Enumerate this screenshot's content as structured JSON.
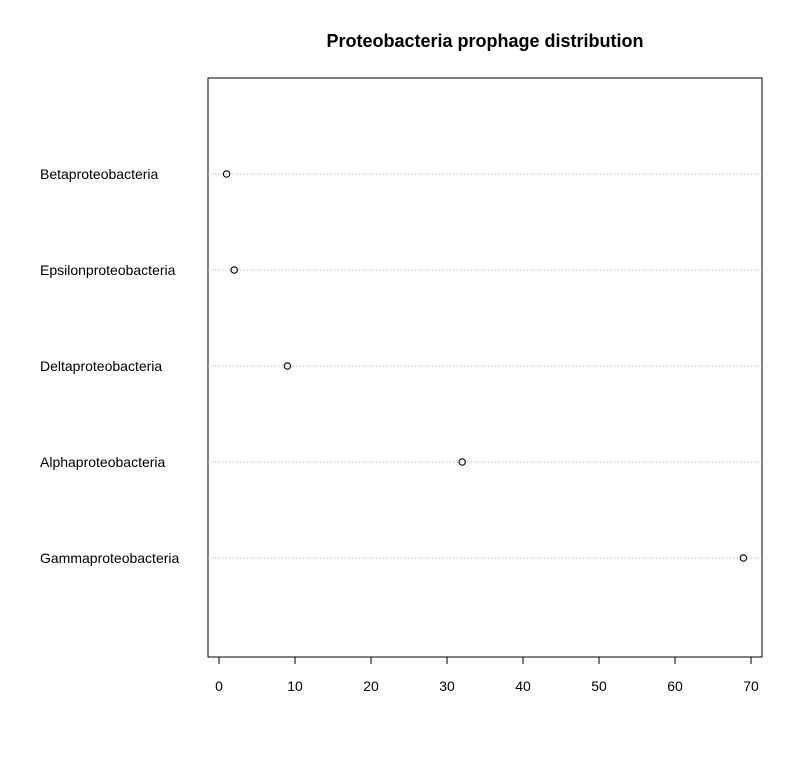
{
  "chart_data": {
    "type": "scatter",
    "subtype": "dotchart",
    "title": "Proteobacteria prophage distribution",
    "xlabel": "",
    "ylabel": "",
    "categories": [
      "Betaproteobacteria",
      "Epsilonproteobacteria",
      "Deltaproteobacteria",
      "Alphaproteobacteria",
      "Gammaproteobacteria"
    ],
    "values": [
      1,
      2,
      9,
      32,
      69
    ],
    "xlim": [
      -1.72,
      71.72
    ],
    "xticks": [
      0,
      10,
      20,
      30,
      40,
      50,
      60,
      70
    ],
    "grid": "dotted horizontal lines at each category",
    "legend": "none",
    "colors": {
      "point": "#000000",
      "grid": "#bebebe",
      "axis": "#000000",
      "background": "#ffffff"
    }
  }
}
